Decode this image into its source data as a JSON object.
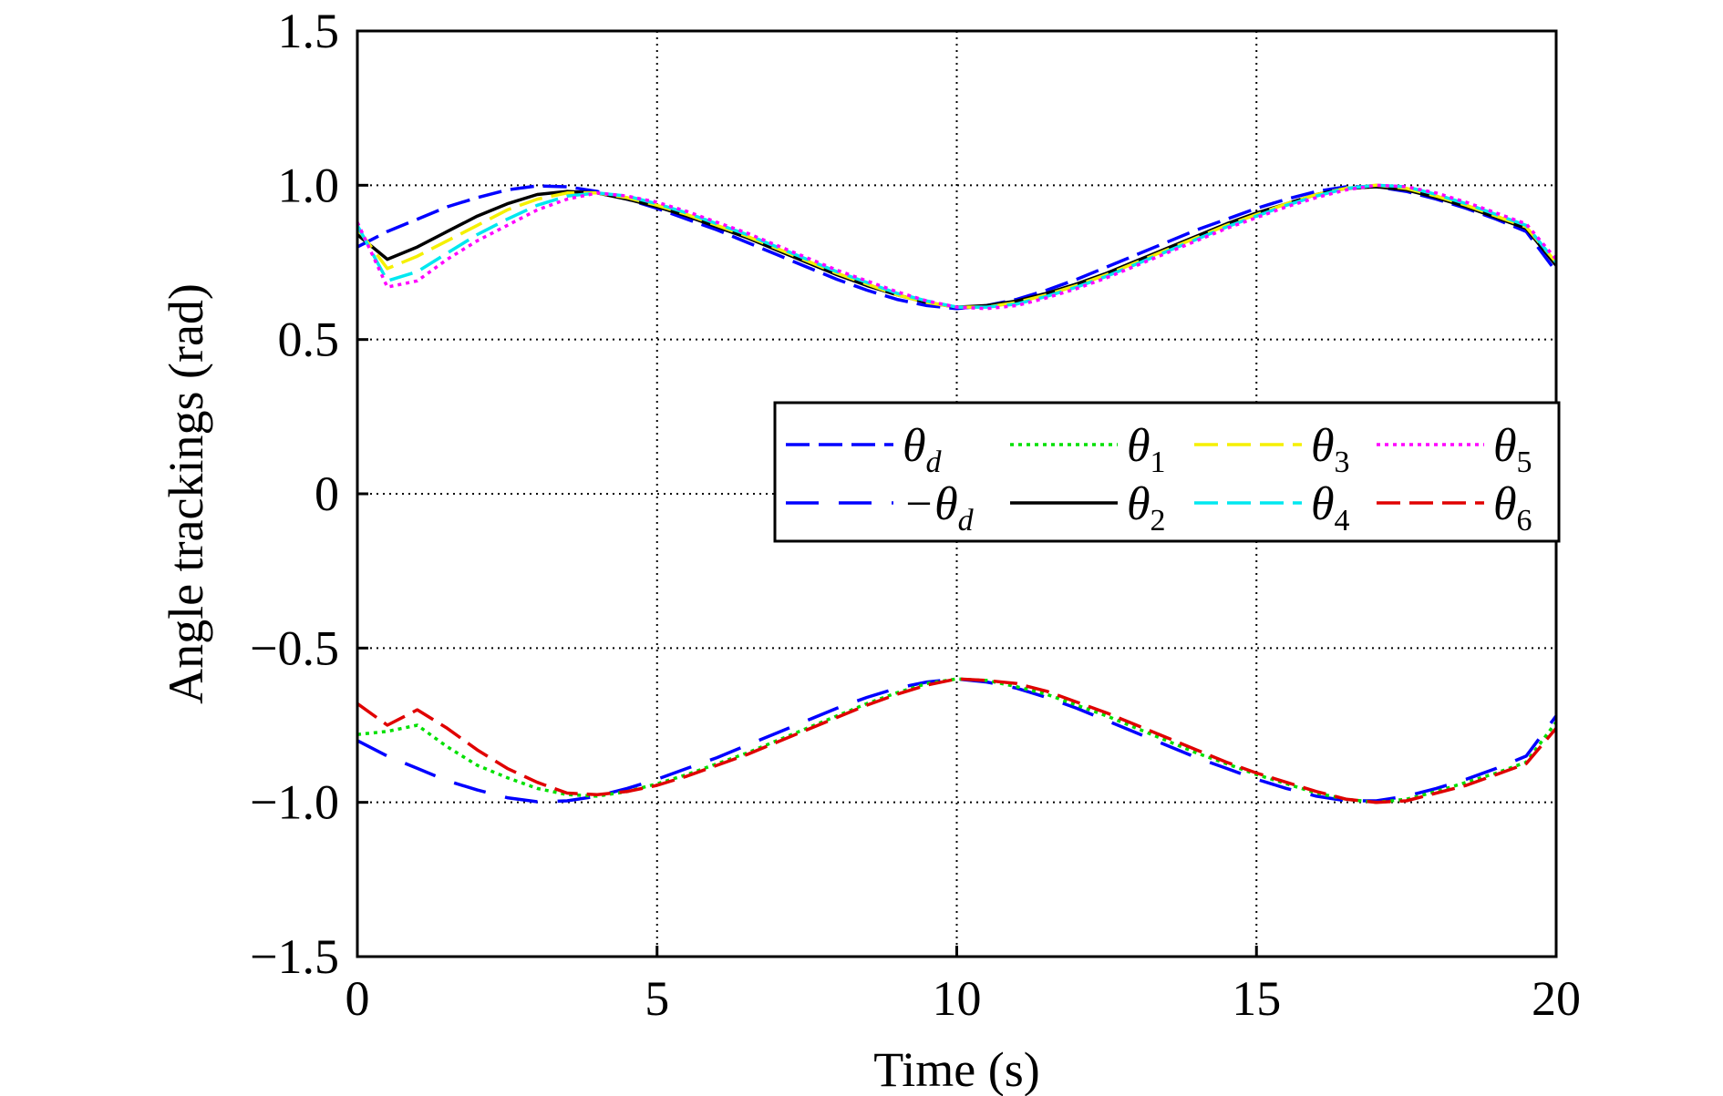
{
  "chart_data": {
    "type": "line",
    "title": "",
    "xlabel": "Time (s)",
    "ylabel": "Angle trackings (rad)",
    "xlim": [
      0,
      20
    ],
    "ylim": [
      -1.5,
      1.5
    ],
    "xticks": [
      0,
      5,
      10,
      15,
      20
    ],
    "xtick_labels": [
      "0",
      "5",
      "10",
      "15",
      "20"
    ],
    "yticks": [
      -1.5,
      -1.0,
      -0.5,
      0,
      0.5,
      1.0,
      1.5
    ],
    "ytick_labels": [
      "−1.5",
      "−1.0",
      "−0.5",
      "0",
      "0.5",
      "1.0",
      "1.5"
    ],
    "grid": true,
    "legend_position": "center-right",
    "x": [
      0,
      0.5,
      1,
      1.5,
      2,
      2.5,
      3,
      3.5,
      4,
      4.5,
      5,
      5.5,
      6,
      6.5,
      7,
      7.5,
      8,
      8.5,
      9,
      9.5,
      10,
      10.5,
      11,
      11.5,
      12,
      12.5,
      13,
      13.5,
      14,
      14.5,
      15,
      15.5,
      16,
      16.5,
      17,
      17.5,
      18,
      18.5,
      19,
      19.5,
      20
    ],
    "series": [
      {
        "name": "θd",
        "label_base": "θ",
        "label_sub": "d",
        "color": "#0000ff",
        "dash": "long-dash",
        "values": [
          0.8,
          0.85,
          0.89,
          0.93,
          0.96,
          0.985,
          0.998,
          0.995,
          0.98,
          0.955,
          0.925,
          0.89,
          0.855,
          0.815,
          0.775,
          0.735,
          0.695,
          0.66,
          0.63,
          0.61,
          0.6,
          0.61,
          0.63,
          0.66,
          0.695,
          0.735,
          0.775,
          0.815,
          0.855,
          0.89,
          0.925,
          0.955,
          0.98,
          0.995,
          0.995,
          0.98,
          0.955,
          0.925,
          0.89,
          0.85,
          0.72
        ]
      },
      {
        "name": "−θd",
        "label_base": "−θ",
        "label_sub": "d",
        "color": "#0000ff",
        "dash": "wide-dash",
        "values": [
          -0.8,
          -0.85,
          -0.89,
          -0.93,
          -0.96,
          -0.985,
          -0.998,
          -0.995,
          -0.98,
          -0.955,
          -0.925,
          -0.89,
          -0.855,
          -0.815,
          -0.775,
          -0.735,
          -0.695,
          -0.66,
          -0.63,
          -0.61,
          -0.6,
          -0.61,
          -0.63,
          -0.66,
          -0.695,
          -0.735,
          -0.775,
          -0.815,
          -0.855,
          -0.89,
          -0.925,
          -0.955,
          -0.98,
          -0.995,
          -0.995,
          -0.98,
          -0.955,
          -0.925,
          -0.89,
          -0.85,
          -0.72
        ]
      },
      {
        "name": "θ1",
        "label_base": "θ",
        "label_sub": "1",
        "color": "#00e000",
        "dash": "dotted",
        "values": [
          -0.78,
          -0.77,
          -0.75,
          -0.82,
          -0.88,
          -0.92,
          -0.955,
          -0.975,
          -0.98,
          -0.965,
          -0.94,
          -0.91,
          -0.875,
          -0.84,
          -0.8,
          -0.76,
          -0.72,
          -0.68,
          -0.645,
          -0.615,
          -0.6,
          -0.605,
          -0.625,
          -0.65,
          -0.685,
          -0.72,
          -0.76,
          -0.8,
          -0.84,
          -0.875,
          -0.91,
          -0.94,
          -0.97,
          -0.99,
          -1.0,
          -0.99,
          -0.965,
          -0.935,
          -0.905,
          -0.87,
          -0.74
        ]
      },
      {
        "name": "θ2",
        "label_base": "θ",
        "label_sub": "2",
        "color": "#000000",
        "dash": "solid",
        "values": [
          0.84,
          0.76,
          0.8,
          0.85,
          0.9,
          0.94,
          0.97,
          0.98,
          0.975,
          0.955,
          0.93,
          0.9,
          0.865,
          0.83,
          0.79,
          0.75,
          0.71,
          0.675,
          0.645,
          0.62,
          0.605,
          0.61,
          0.625,
          0.65,
          0.68,
          0.715,
          0.755,
          0.795,
          0.835,
          0.875,
          0.91,
          0.94,
          0.97,
          0.99,
          0.995,
          0.985,
          0.96,
          0.93,
          0.895,
          0.86,
          0.74
        ]
      },
      {
        "name": "θ3",
        "label_base": "θ",
        "label_sub": "3",
        "color": "#f5f000",
        "dash": "long-dash",
        "values": [
          0.86,
          0.73,
          0.77,
          0.82,
          0.87,
          0.92,
          0.955,
          0.975,
          0.975,
          0.96,
          0.935,
          0.905,
          0.87,
          0.835,
          0.795,
          0.755,
          0.715,
          0.68,
          0.645,
          0.62,
          0.605,
          0.605,
          0.62,
          0.645,
          0.675,
          0.71,
          0.75,
          0.79,
          0.83,
          0.87,
          0.905,
          0.94,
          0.97,
          0.99,
          1.0,
          0.99,
          0.965,
          0.935,
          0.9,
          0.865,
          0.75
        ]
      },
      {
        "name": "θ4",
        "label_base": "θ",
        "label_sub": "4",
        "color": "#00e8f0",
        "dash": "long-dash",
        "values": [
          0.87,
          0.69,
          0.72,
          0.78,
          0.84,
          0.89,
          0.935,
          0.965,
          0.975,
          0.965,
          0.94,
          0.91,
          0.875,
          0.84,
          0.8,
          0.76,
          0.72,
          0.685,
          0.65,
          0.625,
          0.605,
          0.605,
          0.615,
          0.64,
          0.67,
          0.705,
          0.745,
          0.785,
          0.825,
          0.865,
          0.9,
          0.935,
          0.965,
          0.99,
          1.0,
          0.995,
          0.97,
          0.94,
          0.905,
          0.87,
          0.75
        ]
      },
      {
        "name": "θ5",
        "label_base": "θ",
        "label_sub": "5",
        "color": "#ff00ff",
        "dash": "dotted",
        "values": [
          0.88,
          0.67,
          0.69,
          0.76,
          0.82,
          0.87,
          0.92,
          0.955,
          0.975,
          0.965,
          0.945,
          0.915,
          0.88,
          0.845,
          0.805,
          0.765,
          0.725,
          0.69,
          0.655,
          0.625,
          0.605,
          0.6,
          0.61,
          0.635,
          0.665,
          0.7,
          0.74,
          0.78,
          0.82,
          0.86,
          0.895,
          0.93,
          0.96,
          0.985,
          1.0,
          0.995,
          0.975,
          0.945,
          0.91,
          0.875,
          0.76
        ]
      },
      {
        "name": "θ6",
        "label_base": "θ",
        "label_sub": "6",
        "color": "#e00000",
        "dash": "long-dash",
        "values": [
          -0.68,
          -0.75,
          -0.7,
          -0.76,
          -0.83,
          -0.89,
          -0.935,
          -0.97,
          -0.975,
          -0.965,
          -0.945,
          -0.915,
          -0.88,
          -0.845,
          -0.805,
          -0.765,
          -0.725,
          -0.685,
          -0.65,
          -0.62,
          -0.6,
          -0.605,
          -0.615,
          -0.64,
          -0.675,
          -0.71,
          -0.75,
          -0.79,
          -0.83,
          -0.87,
          -0.905,
          -0.935,
          -0.965,
          -0.99,
          -1.0,
          -0.995,
          -0.97,
          -0.945,
          -0.91,
          -0.875,
          -0.76
        ]
      }
    ]
  }
}
